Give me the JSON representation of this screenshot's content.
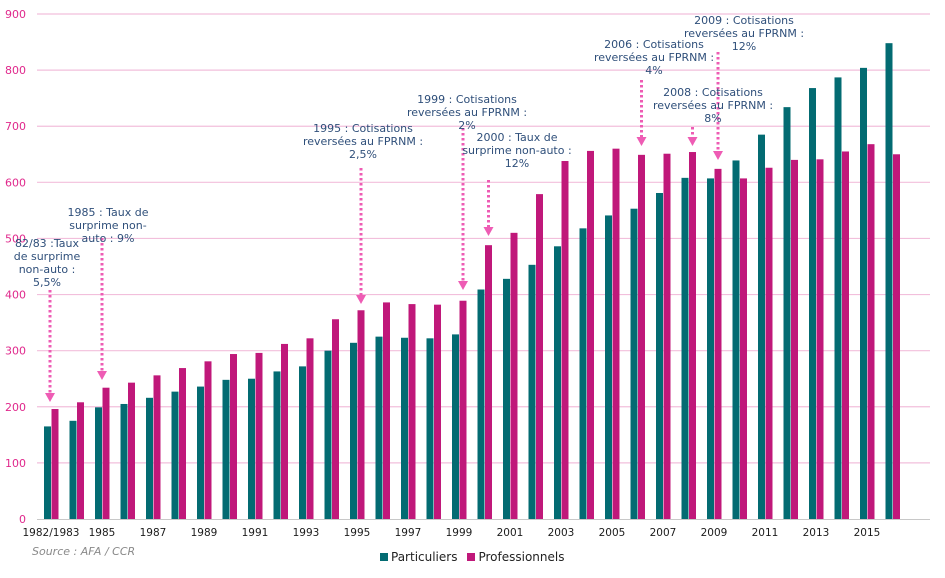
{
  "chart_data": {
    "type": "bar",
    "title": "",
    "xlabel": "",
    "ylabel": "",
    "ylim": [
      0,
      900
    ],
    "yticks": [
      0,
      100,
      200,
      300,
      400,
      500,
      600,
      700,
      800,
      900
    ],
    "grid": true,
    "categories": [
      "1982/1983",
      "1984",
      "1985",
      "1986",
      "1987",
      "1988",
      "1989",
      "1990",
      "1991",
      "1992",
      "1993",
      "1994",
      "1995",
      "1996",
      "1997",
      "1998",
      "1999",
      "2000",
      "2001",
      "2002",
      "2003",
      "2004",
      "2005",
      "2006",
      "2007",
      "2008",
      "2009",
      "2010",
      "2011",
      "2012",
      "2013",
      "2014",
      "2015",
      "2016"
    ],
    "xtick_labels": [
      "1982/1983",
      "",
      "1985",
      "",
      "1987",
      "",
      "1989",
      "",
      "1991",
      "",
      "1993",
      "",
      "1995",
      "",
      "1997",
      "",
      "1999",
      "",
      "2001",
      "",
      "2003",
      "",
      "2005",
      "",
      "2007",
      "",
      "2009",
      "",
      "2011",
      "",
      "2013",
      "",
      "2015",
      ""
    ],
    "series": [
      {
        "name": "Particuliers",
        "color": "#036b72",
        "values": [
          165,
          175,
          199,
          205,
          216,
          227,
          236,
          248,
          250,
          263,
          272,
          300,
          314,
          325,
          323,
          322,
          329,
          409,
          428,
          453,
          486,
          518,
          541,
          553,
          581,
          608,
          607,
          639,
          685,
          734,
          768,
          787,
          804,
          848
        ]
      },
      {
        "name": "Professionnels",
        "color": "#c0187a",
        "values": [
          196,
          208,
          234,
          243,
          256,
          269,
          281,
          294,
          296,
          312,
          322,
          356,
          372,
          386,
          383,
          382,
          389,
          488,
          510,
          579,
          638,
          656,
          660,
          649,
          651,
          654,
          624,
          607,
          626,
          640,
          641,
          655,
          668,
          650
        ]
      }
    ],
    "legend_position": "bottom-center",
    "annotations": [
      {
        "category": "1982/1983",
        "lines": [
          "82/83 :Taux",
          "de surprime",
          "non-auto :",
          "5,5%"
        ]
      },
      {
        "category": "1985",
        "lines": [
          "1985 : Taux de",
          "surprime non-",
          "auto : 9%"
        ]
      },
      {
        "category": "1995",
        "lines": [
          "1995 : Cotisations",
          "reversées au FPRNM :",
          "2,5%"
        ]
      },
      {
        "category": "1999",
        "lines": [
          "1999 : Cotisations",
          "reversées au FPRNM :",
          "2%"
        ]
      },
      {
        "category": "2000",
        "lines": [
          "2000 : Taux de",
          "surprime non-auto :",
          "12%"
        ]
      },
      {
        "category": "2006",
        "lines": [
          "2006 : Cotisations",
          "reversées au FPRNM :",
          "4%"
        ]
      },
      {
        "category": "2008",
        "lines": [
          "2008 : Cotisations",
          "reversées au FPRNM :",
          "8%"
        ]
      },
      {
        "category": "2009",
        "lines": [
          "2009 : Cotisations",
          "reversées au FPRNM :",
          "12%"
        ]
      }
    ],
    "source": "Source : AFA / CCR"
  },
  "colors": {
    "grid": "#f2bfdc",
    "ytick": "#e0288c",
    "arrow": "#ee5cb4",
    "annotation": "#2f4f7a"
  }
}
